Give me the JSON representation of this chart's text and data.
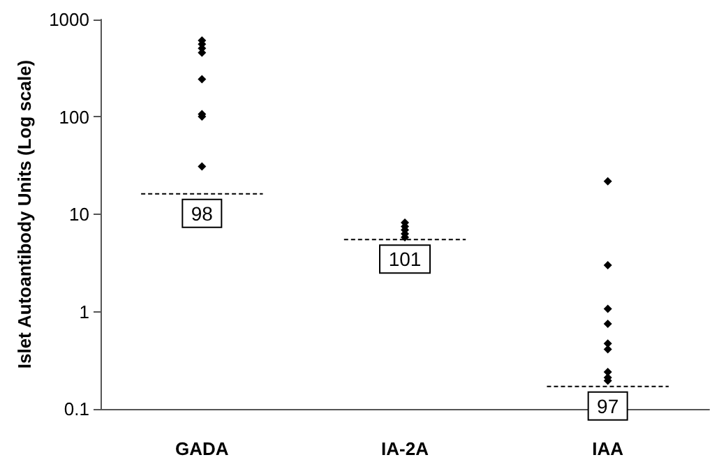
{
  "chart_data": {
    "type": "scatter",
    "ylabel": "Islet Autoantibody Units (Log scale)",
    "categories": [
      "GADA",
      "IA-2A",
      "IAA"
    ],
    "series": [
      {
        "color": "#000000",
        "x": [
          "GADA",
          "GADA",
          "GADA",
          "GADA",
          "GADA",
          "GADA",
          "GADA",
          "GADA",
          "IA-2A",
          "IA-2A",
          "IA-2A",
          "IA-2A",
          "IA-2A",
          "IAA",
          "IAA",
          "IAA",
          "IAA",
          "IAA",
          "IAA",
          "IAA",
          "IAA",
          "IAA"
        ],
        "values": [
          610,
          560,
          507,
          456,
          244,
          107,
          101,
          31,
          8.2,
          7.5,
          6.9,
          6.3,
          5.8,
          21.8,
          3,
          1.07,
          0.75,
          0.47,
          0.41,
          0.24,
          0.21,
          0.195
        ]
      }
    ],
    "annotations": [
      {
        "text": "98",
        "x": "GADA",
        "y": 16.2
      },
      {
        "text": "101",
        "x": "IA-2A",
        "y": 5.5
      },
      {
        "text": "97",
        "x": "IAA",
        "y": 0.17
      }
    ],
    "ref_lines": [
      {
        "axis": "y",
        "value": 16.2,
        "line_style": "dashed"
      },
      {
        "axis": "y",
        "value": 5.5,
        "line_style": "dashed"
      },
      {
        "axis": "y",
        "value": 0.17,
        "line_style": "dashed"
      }
    ],
    "ylim": [
      0.1,
      1000
    ],
    "yticks": [
      0.1,
      1,
      10,
      100,
      1000
    ],
    "log": true,
    "grid": false,
    "marker": "diamond"
  }
}
